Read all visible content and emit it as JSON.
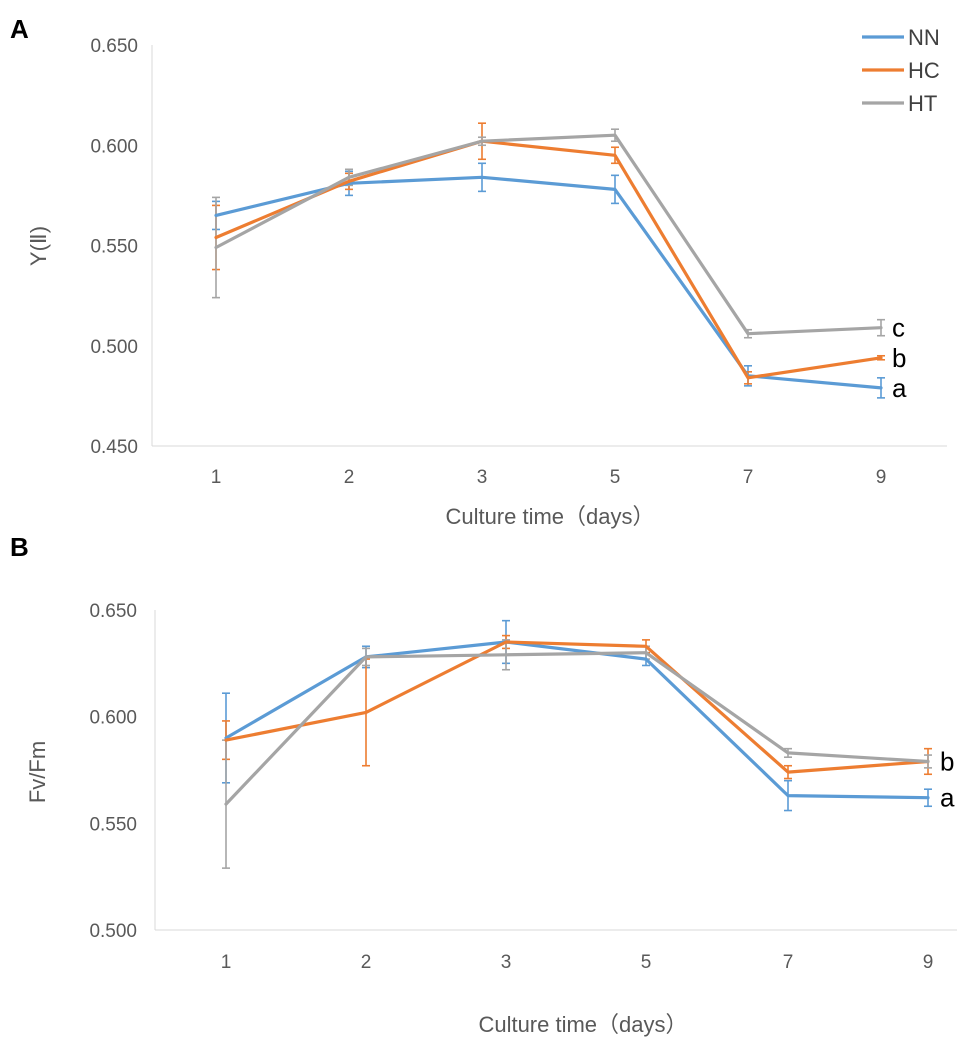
{
  "colors": {
    "NN": "#5B9BD5",
    "HC": "#ED7D31",
    "HT": "#A5A5A5"
  },
  "chart_data": [
    {
      "panel": "A",
      "type": "line",
      "categories": [
        "1",
        "2",
        "3",
        "5",
        "7",
        "9"
      ],
      "xlabel": "Culture time（days）",
      "ylabel": "Y(Ⅱ)",
      "ylim": [
        0.45,
        0.65
      ],
      "yticks": [
        "0.650",
        "0.600",
        "0.550",
        "0.500",
        "0.450"
      ],
      "legend": [
        "NN",
        "HC",
        "HT"
      ],
      "legend_position": "top-right",
      "series": [
        {
          "name": "NN",
          "values": [
            0.565,
            0.581,
            0.584,
            0.578,
            0.485,
            0.479
          ],
          "errors": [
            0.007,
            0.006,
            0.007,
            0.007,
            0.005,
            0.005
          ]
        },
        {
          "name": "HC",
          "values": [
            0.554,
            0.582,
            0.602,
            0.595,
            0.484,
            0.494
          ],
          "errors": [
            0.016,
            0.004,
            0.009,
            0.004,
            0.003,
            0.001
          ]
        },
        {
          "name": "HT",
          "values": [
            0.549,
            0.584,
            0.602,
            0.605,
            0.506,
            0.509
          ],
          "errors": [
            0.025,
            0.004,
            0.002,
            0.003,
            0.002,
            0.004
          ]
        }
      ],
      "annotations": [
        {
          "series": "HT",
          "text": "c"
        },
        {
          "series": "HC",
          "text": "b"
        },
        {
          "series": "NN",
          "text": "a"
        }
      ]
    },
    {
      "panel": "B",
      "type": "line",
      "categories": [
        "1",
        "2",
        "3",
        "5",
        "7",
        "9"
      ],
      "xlabel": "Culture time（days）",
      "ylabel": "Fv/Fm",
      "ylim": [
        0.5,
        0.65
      ],
      "yticks": [
        "0.650",
        "0.600",
        "0.550",
        "0.500"
      ],
      "series": [
        {
          "name": "NN",
          "values": [
            0.59,
            0.628,
            0.635,
            0.627,
            0.563,
            0.562
          ],
          "errors": [
            0.021,
            0.005,
            0.01,
            0.003,
            0.007,
            0.004
          ]
        },
        {
          "name": "HC",
          "values": [
            0.589,
            0.602,
            0.635,
            0.633,
            0.574,
            0.579
          ],
          "errors": [
            0.009,
            0.025,
            0.003,
            0.003,
            0.003,
            0.006
          ]
        },
        {
          "name": "HT",
          "values": [
            0.559,
            0.628,
            0.629,
            0.63,
            0.583,
            0.579
          ],
          "errors": [
            0.03,
            0.004,
            0.007,
            0.003,
            0.002,
            0.003
          ]
        }
      ],
      "annotations": [
        {
          "series": "HT",
          "text": "b"
        },
        {
          "series": "NN",
          "text": "a"
        }
      ]
    }
  ]
}
